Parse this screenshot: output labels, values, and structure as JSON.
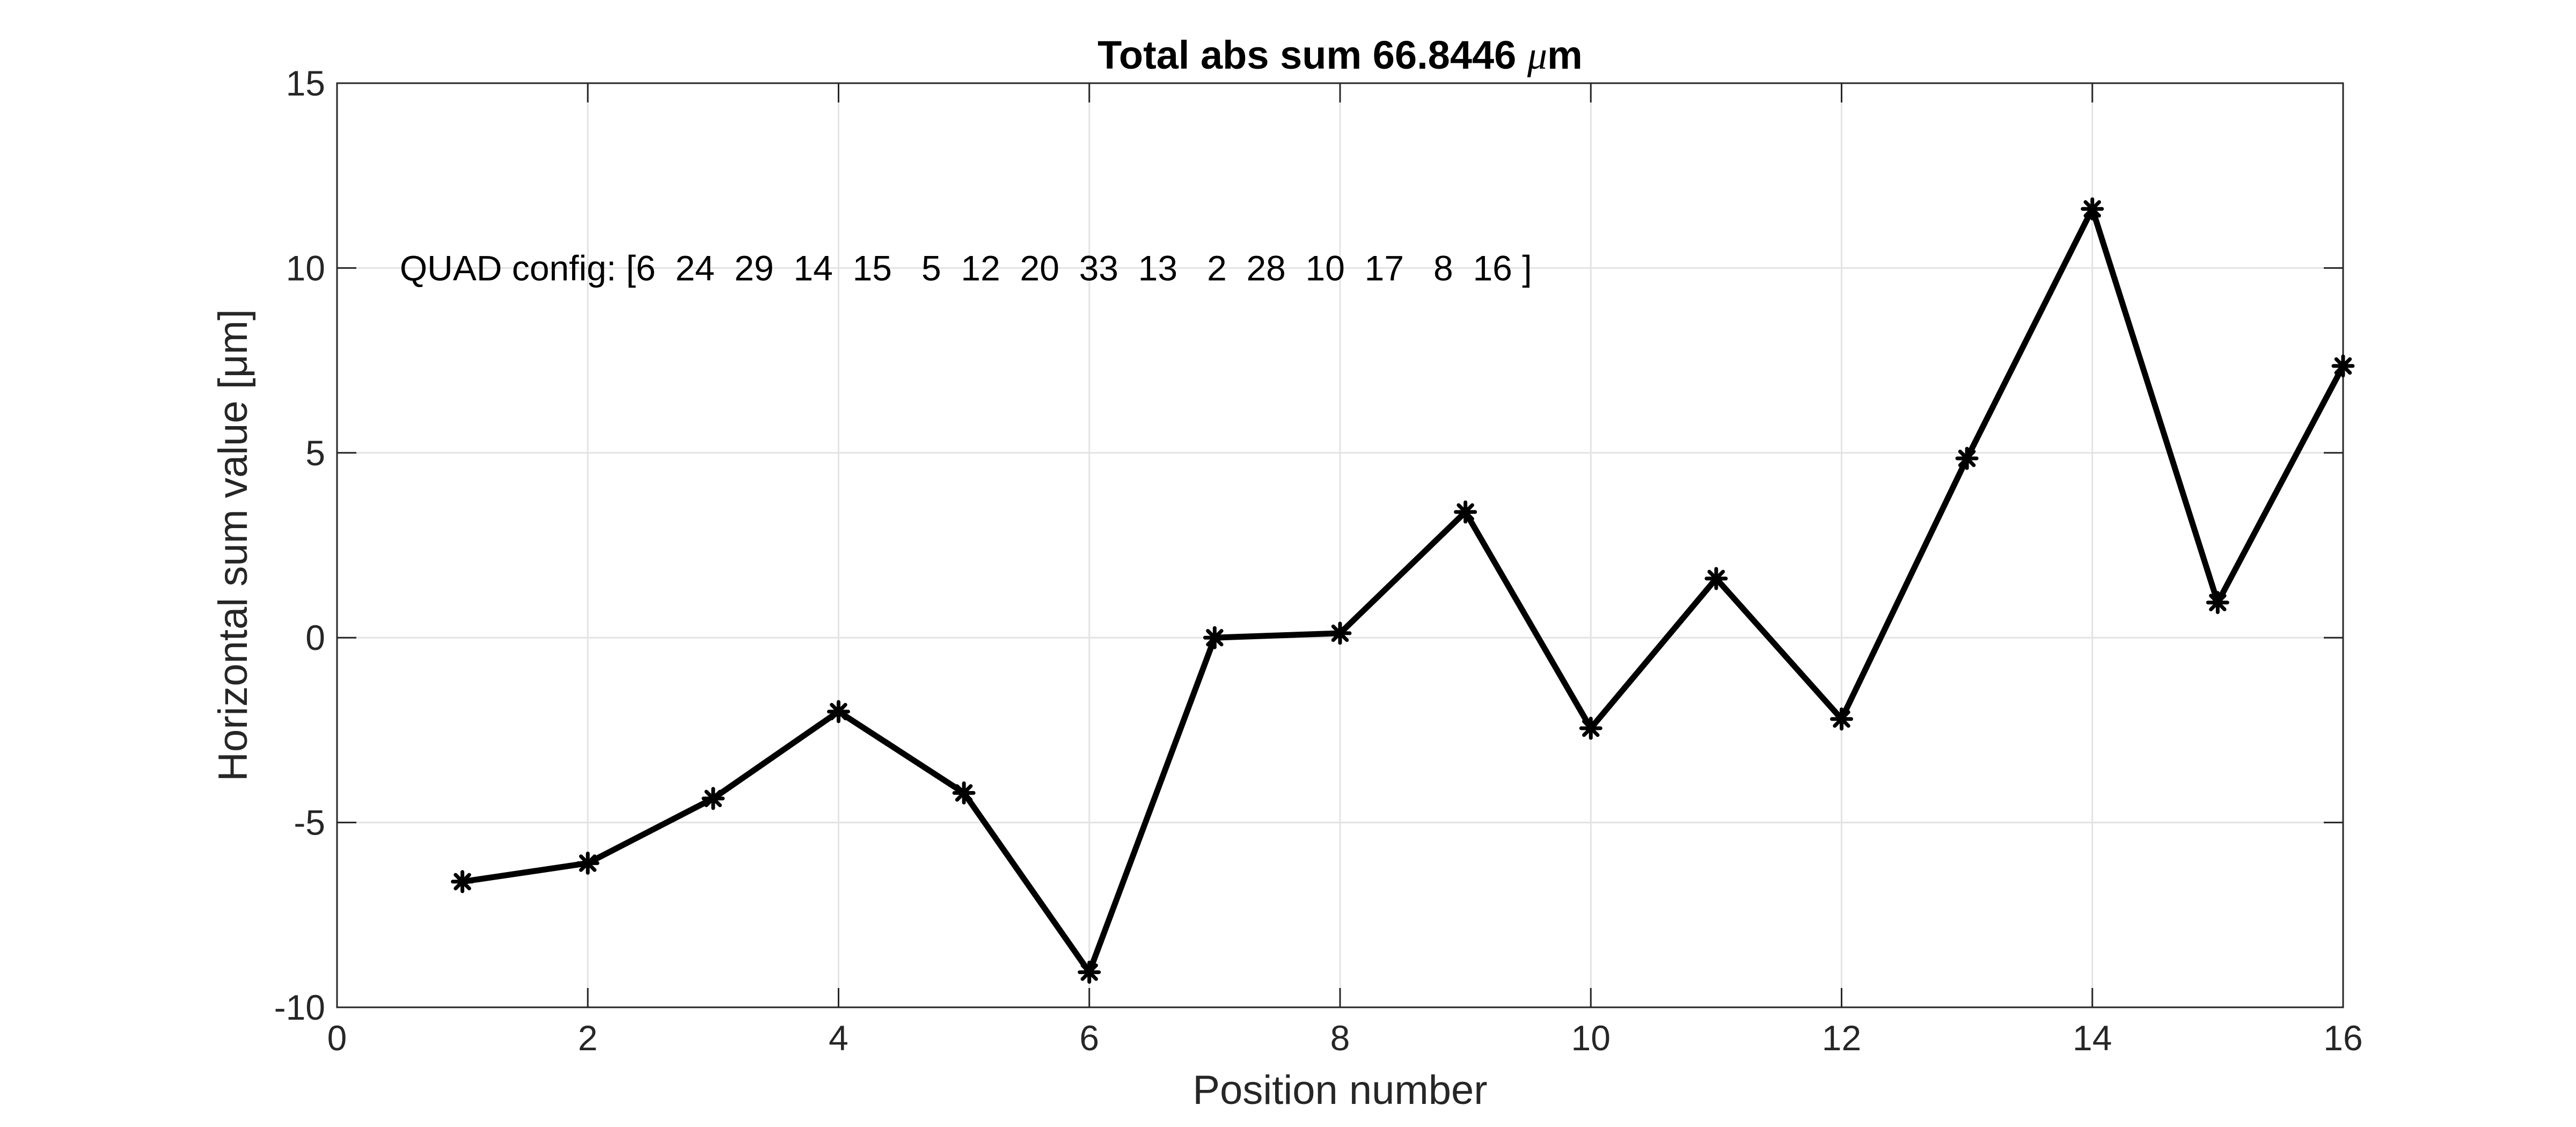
{
  "chart_data": {
    "type": "line",
    "title_prefix": "Total abs sum 66.8446 ",
    "title_mu": "μ",
    "title_suffix": "m",
    "xlabel": "Position number",
    "ylabel": "Horizontal sum value [μm]",
    "xlim": [
      0,
      16
    ],
    "ylim": [
      -10,
      15
    ],
    "xticks": [
      0,
      2,
      4,
      6,
      8,
      10,
      12,
      14,
      16
    ],
    "yticks": [
      -10,
      -5,
      0,
      5,
      10,
      15
    ],
    "xtick_labels": [
      "0",
      "2",
      "4",
      "6",
      "8",
      "10",
      "12",
      "14",
      "16"
    ],
    "ytick_labels": [
      "-10",
      "-5",
      "0",
      "5",
      "10",
      "15"
    ],
    "grid": true,
    "series": [
      {
        "x": [
          1,
          2,
          3,
          4,
          5,
          6,
          7,
          8,
          9,
          10,
          11,
          12,
          13,
          14,
          15,
          16
        ],
        "y": [
          -6.6,
          -6.1,
          -4.35,
          -2.0,
          -4.2,
          -9.05,
          0.0,
          0.12,
          3.4,
          -2.45,
          1.6,
          -2.2,
          4.85,
          11.6,
          0.95,
          7.35
        ],
        "color": "#000000",
        "marker": "asterisk"
      }
    ],
    "annotations": [
      {
        "text": "QUAD config: [6  24  29  14  15   5  12  20  33  13   2  28  10  17   8  16 ]",
        "x": 0.5,
        "y": 10
      }
    ]
  }
}
